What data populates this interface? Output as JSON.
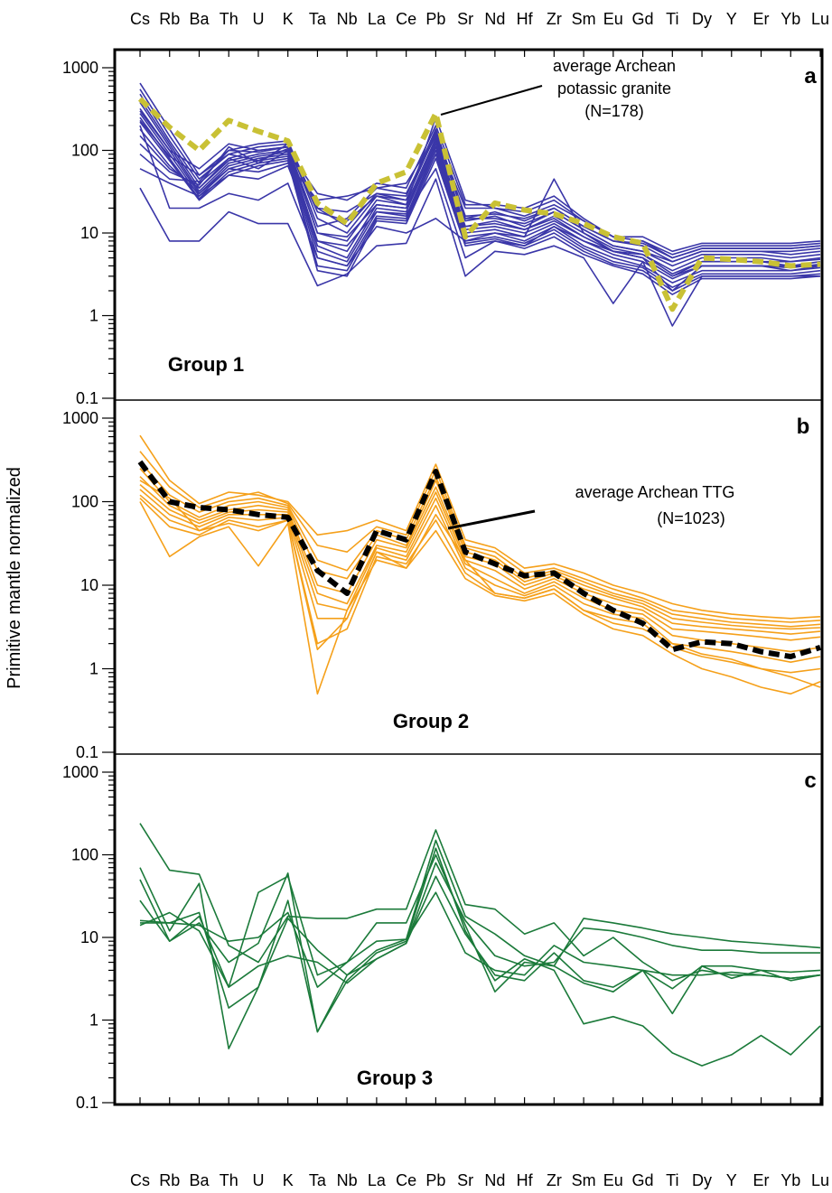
{
  "chart_data": [
    {
      "type": "line",
      "panel": "a",
      "group_label": "Group 1",
      "ylabel": "Primitive mantle normalized",
      "y_scale": "log",
      "ylim": [
        0.1,
        1000
      ],
      "y_ticks": [
        "0.1",
        "1",
        "10",
        "100",
        "1000"
      ],
      "categories": [
        "Cs",
        "Rb",
        "Ba",
        "Th",
        "U",
        "K",
        "Ta",
        "Nb",
        "La",
        "Ce",
        "Pb",
        "Sr",
        "Nd",
        "Hf",
        "Zr",
        "Sm",
        "Eu",
        "Gd",
        "Ti",
        "Dy",
        "Y",
        "Er",
        "Yb",
        "Lu"
      ],
      "series_color": "#3a36a8",
      "series": [
        {
          "values": [
            650,
            180,
            50,
            100,
            120,
            130,
            20,
            12,
            30,
            28,
            180,
            15,
            18,
            14,
            20,
            12,
            8,
            7,
            4.5,
            6,
            6,
            6,
            5.5,
            6
          ]
        },
        {
          "values": [
            550,
            150,
            45,
            90,
            110,
            120,
            15,
            10,
            28,
            25,
            160,
            14,
            16,
            12,
            18,
            11,
            7,
            6,
            4,
            5.5,
            5.5,
            5.5,
            5,
            5.5
          ]
        },
        {
          "values": [
            480,
            130,
            40,
            80,
            100,
            110,
            10,
            8,
            25,
            22,
            140,
            12,
            14,
            11,
            16,
            10,
            6.5,
            5.5,
            3.5,
            5,
            5,
            5,
            4.5,
            5
          ]
        },
        {
          "values": [
            420,
            120,
            35,
            75,
            90,
            100,
            8,
            6,
            22,
            20,
            130,
            11,
            12,
            10,
            14,
            9,
            6,
            5,
            3,
            4.5,
            4.5,
            4.5,
            4,
            4.5
          ]
        },
        {
          "values": [
            380,
            110,
            32,
            70,
            85,
            95,
            7,
            5,
            20,
            18,
            120,
            10,
            11,
            9,
            13,
            8,
            5.5,
            4.5,
            2.8,
            4,
            4,
            4,
            3.8,
            4.2
          ]
        },
        {
          "values": [
            320,
            100,
            30,
            65,
            80,
            90,
            6,
            4.5,
            18,
            16,
            110,
            9,
            10,
            8,
            12,
            7,
            5,
            4,
            2.5,
            3.5,
            3.5,
            3.5,
            3.5,
            3.8
          ]
        },
        {
          "values": [
            280,
            90,
            28,
            60,
            75,
            85,
            5,
            4,
            16,
            15,
            100,
            8,
            9,
            7.5,
            11,
            6.5,
            4.5,
            3.8,
            2.2,
            3.2,
            3.2,
            3.2,
            3.2,
            3.5
          ]
        },
        {
          "values": [
            250,
            80,
            26,
            55,
            70,
            80,
            4,
            3.5,
            15,
            14,
            90,
            7.5,
            8.5,
            7,
            10,
            6,
            4.2,
            3.5,
            2,
            3,
            3,
            3,
            3,
            3.2
          ]
        },
        {
          "values": [
            220,
            75,
            25,
            50,
            65,
            75,
            3.5,
            3,
            14,
            13,
            80,
            7,
            8,
            6.5,
            9,
            5.5,
            4,
            3.2,
            1.8,
            2.8,
            2.8,
            2.8,
            2.8,
            3
          ]
        },
        {
          "values": [
            180,
            65,
            30,
            60,
            55,
            70,
            25,
            28,
            35,
            40,
            150,
            20,
            20,
            18,
            25,
            14,
            9,
            8,
            5.5,
            7,
            7,
            7,
            7,
            7.5
          ]
        },
        {
          "values": [
            150,
            60,
            35,
            80,
            60,
            100,
            30,
            25,
            40,
            35,
            200,
            22,
            22,
            20,
            28,
            15,
            9,
            9,
            6,
            7.5,
            7.5,
            7.5,
            7.5,
            8
          ]
        },
        {
          "values": [
            120,
            55,
            38,
            110,
            70,
            120,
            20,
            18,
            30,
            25,
            170,
            16,
            17,
            15,
            20,
            12,
            8,
            7.5,
            5,
            6.5,
            6.5,
            6.5,
            6.5,
            7
          ]
        },
        {
          "values": [
            90,
            45,
            42,
            100,
            95,
            110,
            12,
            15,
            35,
            30,
            150,
            15,
            15,
            13,
            18,
            11,
            7,
            6,
            4.5,
            6,
            6,
            6,
            6,
            6.5
          ]
        },
        {
          "values": [
            60,
            40,
            28,
            50,
            45,
            65,
            8,
            7,
            18,
            17,
            60,
            5,
            8,
            7,
            12,
            8,
            6,
            5,
            3,
            4,
            4,
            4,
            3.5,
            4
          ]
        },
        {
          "values": [
            35,
            8,
            8,
            18,
            13,
            13,
            2.3,
            3.2,
            7,
            7.5,
            45,
            3,
            6,
            5.5,
            7,
            5,
            1.4,
            4.5,
            0.75,
            3,
            3,
            3,
            3,
            3
          ]
        },
        {
          "values": [
            200,
            20,
            20,
            30,
            25,
            40,
            5,
            4,
            12,
            10,
            15,
            8,
            10,
            9,
            45,
            10,
            6,
            5,
            2,
            4,
            4,
            4,
            4,
            4
          ]
        },
        {
          "values": [
            300,
            100,
            60,
            120,
            100,
            110,
            18,
            14,
            28,
            22,
            250,
            25,
            20,
            16,
            22,
            14,
            9,
            8,
            5,
            6.5,
            6.5,
            6.5,
            6.5,
            7
          ]
        },
        {
          "values": [
            230,
            85,
            50,
            90,
            75,
            105,
            10,
            9,
            22,
            20,
            110,
            12,
            13,
            11,
            15,
            9,
            6,
            5.5,
            3.2,
            4.5,
            4.5,
            4.5,
            4.5,
            4.8
          ]
        }
      ],
      "average": {
        "label": "average Archean potassic granite (N=178)",
        "color": "#c9c135",
        "values": [
          420,
          190,
          100,
          230,
          170,
          130,
          23,
          13,
          40,
          55,
          280,
          9,
          23,
          19,
          17,
          13,
          9,
          7.5,
          1.2,
          5,
          4.8,
          4.5,
          4,
          4.2
        ]
      }
    },
    {
      "type": "line",
      "panel": "b",
      "group_label": "Group 2",
      "y_scale": "log",
      "ylim": [
        0.1,
        1000
      ],
      "y_ticks": [
        "0.1",
        "1",
        "10",
        "100",
        "1000"
      ],
      "categories": [
        "Cs",
        "Rb",
        "Ba",
        "Th",
        "U",
        "K",
        "Ta",
        "Nb",
        "La",
        "Ce",
        "Pb",
        "Sr",
        "Nd",
        "Hf",
        "Zr",
        "Sm",
        "Eu",
        "Gd",
        "Ti",
        "Dy",
        "Y",
        "Er",
        "Yb",
        "Lu"
      ],
      "series_color": "#f5a01a",
      "series": [
        {
          "values": [
            620,
            180,
            95,
            130,
            120,
            100,
            40,
            45,
            60,
            45,
            280,
            35,
            28,
            16,
            18,
            14,
            10,
            8,
            6,
            5,
            4.5,
            4.2,
            4,
            4.2
          ]
        },
        {
          "values": [
            400,
            150,
            85,
            110,
            130,
            95,
            30,
            25,
            50,
            40,
            240,
            30,
            25,
            14,
            16,
            12,
            9,
            7,
            5,
            4.5,
            4,
            3.8,
            3.6,
            3.8
          ]
        },
        {
          "values": [
            300,
            120,
            75,
            100,
            110,
            90,
            20,
            15,
            45,
            35,
            200,
            28,
            22,
            12,
            15,
            11,
            8,
            6.5,
            4.5,
            4,
            3.6,
            3.4,
            3.2,
            3.4
          ]
        },
        {
          "values": [
            250,
            100,
            65,
            90,
            100,
            85,
            15,
            12,
            40,
            30,
            180,
            25,
            20,
            11,
            14,
            10,
            7.5,
            6,
            4,
            3.6,
            3.3,
            3.1,
            3,
            3.1
          ]
        },
        {
          "values": [
            200,
            90,
            60,
            80,
            90,
            80,
            10,
            8,
            35,
            28,
            150,
            22,
            18,
            10,
            13,
            9,
            7,
            5.5,
            3.5,
            3.2,
            3,
            2.8,
            2.6,
            2.8
          ]
        },
        {
          "values": [
            160,
            80,
            55,
            75,
            80,
            75,
            8,
            6,
            30,
            25,
            130,
            20,
            15,
            9,
            12,
            8,
            6,
            5,
            3,
            2.8,
            2.6,
            2.4,
            2.2,
            2.4
          ]
        },
        {
          "values": [
            140,
            70,
            50,
            70,
            70,
            70,
            6,
            5,
            28,
            22,
            110,
            18,
            12,
            8,
            11,
            7,
            5,
            4.5,
            2.5,
            2.2,
            2,
            1.8,
            1.6,
            1.8
          ]
        },
        {
          "values": [
            120,
            60,
            45,
            65,
            60,
            65,
            4,
            4,
            25,
            20,
            90,
            16,
            10,
            7.5,
            10,
            6,
            4.5,
            4,
            2,
            1.8,
            1.6,
            1.4,
            1.2,
            1.4
          ]
        },
        {
          "values": [
            110,
            50,
            40,
            60,
            50,
            60,
            2,
            3,
            22,
            18,
            60,
            14,
            8,
            7,
            9,
            5,
            4,
            3.5,
            1.8,
            1.4,
            1.2,
            1,
            0.9,
            1
          ]
        },
        {
          "values": [
            100,
            22,
            38,
            50,
            17,
            55,
            0.5,
            5,
            20,
            16,
            45,
            12,
            7.5,
            6.5,
            8,
            4.5,
            3,
            2.5,
            1.5,
            1,
            0.8,
            0.6,
            0.5,
            0.7
          ]
        },
        {
          "values": [
            180,
            110,
            45,
            55,
            45,
            60,
            1.7,
            4,
            25,
            16,
            70,
            20,
            8,
            7,
            9,
            5,
            3.5,
            3,
            2,
            1.5,
            1.3,
            1,
            0.8,
            0.6
          ]
        }
      ],
      "average": {
        "label": "average Archean TTG (N=1023)",
        "color": "#000000",
        "values": [
          300,
          100,
          85,
          80,
          70,
          65,
          15,
          8,
          45,
          35,
          230,
          25,
          18,
          13,
          14,
          8,
          5,
          3.5,
          1.7,
          2.1,
          2,
          1.6,
          1.4,
          1.8
        ]
      }
    },
    {
      "type": "line",
      "panel": "c",
      "group_label": "Group 3",
      "y_scale": "log",
      "ylim": [
        0.1,
        1000
      ],
      "y_ticks": [
        "0.1",
        "1",
        "10",
        "100",
        "1000"
      ],
      "categories": [
        "Cs",
        "Rb",
        "Ba",
        "Th",
        "U",
        "K",
        "Ta",
        "Nb",
        "La",
        "Ce",
        "Pb",
        "Sr",
        "Nd",
        "Hf",
        "Zr",
        "Sm",
        "Eu",
        "Gd",
        "Ti",
        "Dy",
        "Y",
        "Er",
        "Yb",
        "Lu"
      ],
      "series_color": "#1b7a3a",
      "series": [
        {
          "values": [
            240,
            65,
            58,
            8,
            5,
            18,
            17,
            17,
            22,
            22,
            200,
            25,
            22,
            11,
            15,
            6,
            10,
            5,
            3,
            4,
            3.5,
            3.5,
            3.2,
            3.5
          ]
        },
        {
          "values": [
            70,
            12,
            45,
            0.45,
            2.5,
            28,
            0.72,
            3.5,
            7,
            9.5,
            150,
            18,
            11,
            6,
            4.5,
            17,
            15,
            13,
            11,
            10,
            9,
            8.5,
            8,
            7.5
          ]
        },
        {
          "values": [
            50,
            9,
            18,
            2.5,
            35,
            55,
            3.5,
            5,
            15,
            15,
            100,
            14,
            2.2,
            5,
            4.5,
            2.8,
            2.2,
            4,
            1.2,
            4.5,
            4.5,
            4,
            3.8,
            4
          ]
        },
        {
          "values": [
            28,
            9,
            15,
            5,
            8.5,
            60,
            0.72,
            3,
            6.5,
            9,
            120,
            12,
            3,
            5.5,
            4,
            0.9,
            1.1,
            0.85,
            0.4,
            0.28,
            0.38,
            0.65,
            0.38,
            0.85
          ]
        },
        {
          "values": [
            16,
            15,
            20,
            1.4,
            2.5,
            17,
            7,
            3.5,
            5.5,
            8.5,
            80,
            16,
            6,
            4.5,
            5,
            13,
            12,
            10,
            8,
            7,
            7,
            6.5,
            6.5,
            6.5
          ]
        },
        {
          "values": [
            15,
            15,
            14,
            9,
            10,
            20,
            2.5,
            5,
            9,
            9.5,
            35,
            6.5,
            4,
            3.5,
            8,
            5,
            4.5,
            4,
            3.5,
            3.5,
            3.8,
            3.5,
            3.2,
            3.5
          ]
        },
        {
          "values": [
            14,
            20,
            12,
            2.5,
            4.5,
            6,
            5,
            2.8,
            5.5,
            8.5,
            55,
            11,
            3.5,
            3,
            6.5,
            3,
            2.5,
            4,
            2.4,
            4.5,
            3.2,
            4,
            3,
            3.5
          ]
        }
      ]
    }
  ]
}
